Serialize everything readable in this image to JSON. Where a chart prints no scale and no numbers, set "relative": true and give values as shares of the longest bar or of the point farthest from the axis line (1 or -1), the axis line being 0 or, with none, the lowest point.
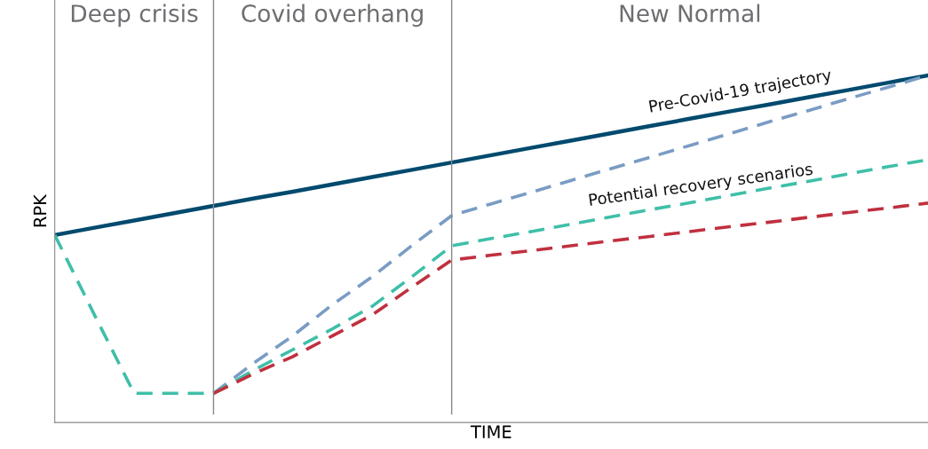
{
  "chart_data": {
    "type": "line",
    "relative": true,
    "xlabel": "TIME",
    "ylabel": "RPK",
    "categories": [
      null,
      null,
      null,
      null,
      null,
      null,
      null,
      null,
      null,
      null,
      null,
      null,
      null,
      null,
      null,
      null,
      null,
      null,
      null,
      null,
      null,
      null,
      null
    ],
    "series": [
      {
        "color": "#004a6e",
        "line_style": "solid",
        "values": [
          0.54,
          0.561,
          0.582,
          0.603,
          0.624,
          0.645,
          0.665,
          0.686,
          0.707,
          0.728,
          0.749,
          0.77,
          0.791,
          0.812,
          0.833,
          0.854,
          0.875,
          0.896,
          0.916,
          0.937,
          0.958,
          0.979,
          1.0
        ]
      },
      {
        "color": "#7a9cc4",
        "line_style": "dashed",
        "values": [
          null,
          null,
          null,
          null,
          0.084,
          0.17,
          0.25,
          0.34,
          0.42,
          0.51,
          0.596,
          0.63,
          0.663,
          0.697,
          0.731,
          0.764,
          0.798,
          0.832,
          0.866,
          0.899,
          0.933,
          0.966,
          1.0
        ]
      },
      {
        "color": "#3fbfa8",
        "line_style": "dashed",
        "values": [
          0.54,
          0.31,
          0.084,
          0.084,
          0.084,
          0.15,
          0.21,
          0.27,
          0.335,
          0.42,
          0.509,
          0.53,
          0.55,
          0.571,
          0.592,
          0.613,
          0.633,
          0.654,
          0.675,
          0.695,
          0.716,
          0.737,
          0.757
        ]
      },
      {
        "color": "#c0303f",
        "line_style": "dashed",
        "values": [
          null,
          null,
          null,
          null,
          0.084,
          0.14,
          0.19,
          0.25,
          0.31,
          0.39,
          0.468,
          0.482,
          0.495,
          0.509,
          0.523,
          0.536,
          0.55,
          0.564,
          0.577,
          0.591,
          0.605,
          0.618,
          0.632
        ]
      }
    ],
    "annotations": [
      "Deep crisis",
      "Covid overhang",
      "New Normal",
      "Pre-Covid-19 trajectory",
      "Potential recovery scenarios"
    ],
    "legend": false,
    "grid": false
  }
}
